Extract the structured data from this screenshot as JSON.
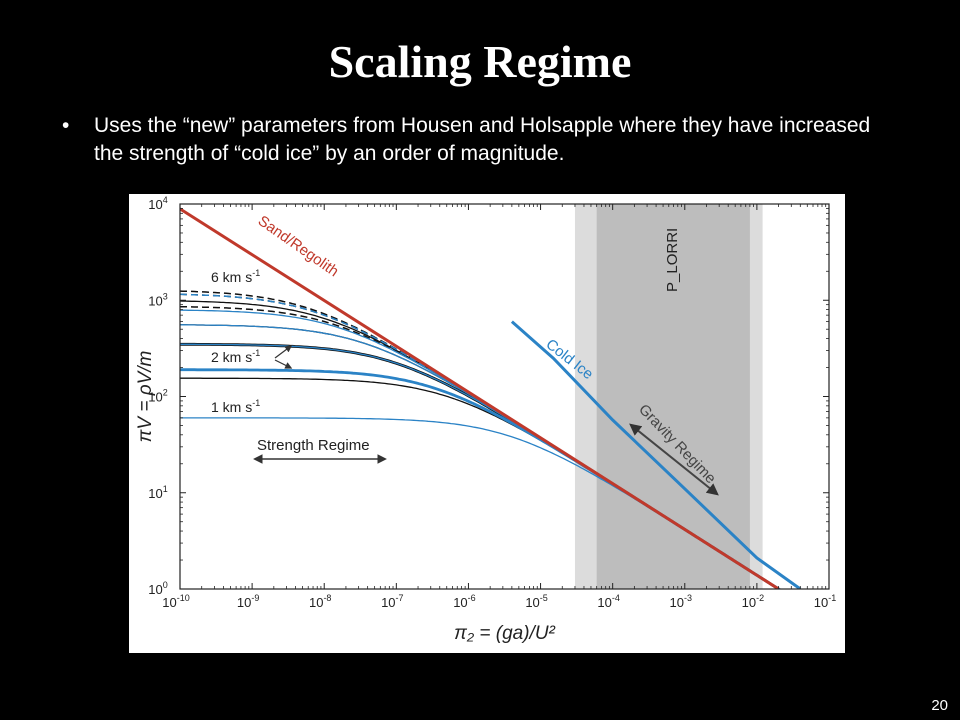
{
  "slide": {
    "title": "Scaling Regime",
    "bullet": "Uses the “new” parameters from Housen and Holsapple where they have increased the strength of “cold ice” by an order of magnitude.",
    "page_number": "20"
  },
  "chart_data": {
    "type": "line",
    "xscale": "log",
    "yscale": "log",
    "xlim": [
      1e-10,
      0.1
    ],
    "ylim": [
      1,
      10000
    ],
    "xlabel": "π₂ = (ga)/U²",
    "ylabel": "πV = ρV/m",
    "x_ticks": [
      {
        "v": 1e-10,
        "exp": "-10"
      },
      {
        "v": 1e-09,
        "exp": "-9"
      },
      {
        "v": 1e-08,
        "exp": "-8"
      },
      {
        "v": 1e-07,
        "exp": "-7"
      },
      {
        "v": 1e-06,
        "exp": "-6"
      },
      {
        "v": 1e-05,
        "exp": "-5"
      },
      {
        "v": 0.0001,
        "exp": "-4"
      },
      {
        "v": 0.001,
        "exp": "-3"
      },
      {
        "v": 0.01,
        "exp": "-2"
      },
      {
        "v": 0.1,
        "exp": "-1"
      }
    ],
    "y_ticks": [
      {
        "v": 1,
        "exp": "0"
      },
      {
        "v": 10,
        "exp": "1"
      },
      {
        "v": 100,
        "exp": "2"
      },
      {
        "v": 1000,
        "exp": "3"
      },
      {
        "v": 10000,
        "exp": "4"
      }
    ],
    "tick_base": "10",
    "bands": [
      {
        "x0": 3e-05,
        "x1": 0.012,
        "color": "#dcdcdc"
      },
      {
        "x0": 6e-05,
        "x1": 0.008,
        "color": "#bdbdbd"
      }
    ],
    "gravity_lines": [
      {
        "name": "Sand/Regolith",
        "color": "#c0392b",
        "points": [
          [
            1e-10,
            8900
          ],
          [
            0.02,
            1
          ]
        ]
      },
      {
        "name": "Cold Ice",
        "color": "#2b83c6",
        "points": [
          [
            4e-06,
            600
          ],
          [
            1.5e-05,
            250
          ],
          [
            0.0001,
            57
          ],
          [
            0.001,
            11
          ],
          [
            0.01,
            2.1
          ],
          [
            0.04,
            1
          ]
        ]
      }
    ],
    "strength_curves": [
      {
        "plateau": 1280,
        "color": "#111111",
        "dash": true,
        "width": 1.5
      },
      {
        "plateau": 1180,
        "color": "#111111",
        "dash": true,
        "width": 1.5
      },
      {
        "plateau": 1000,
        "color": "#111111",
        "dash": false,
        "width": 1.3
      },
      {
        "plateau": 870,
        "color": "#111111",
        "dash": true,
        "width": 1.5
      },
      {
        "plateau": 560,
        "color": "#111111",
        "dash": false,
        "width": 1.3
      },
      {
        "plateau": 350,
        "color": "#111111",
        "dash": false,
        "width": 2.8
      },
      {
        "plateau": 155,
        "color": "#111111",
        "dash": false,
        "width": 1.3
      },
      {
        "plateau": 1180,
        "color": "#2b83c6",
        "dash": true,
        "width": 1.5
      },
      {
        "plateau": 800,
        "color": "#2b83c6",
        "dash": false,
        "width": 1.3
      },
      {
        "plateau": 560,
        "color": "#2b83c6",
        "dash": false,
        "width": 1.3
      },
      {
        "plateau": 350,
        "color": "#2b83c6",
        "dash": false,
        "width": 1.3
      },
      {
        "plateau": 190,
        "color": "#2b83c6",
        "dash": false,
        "width": 2.8
      },
      {
        "plateau": 60,
        "color": "#2b83c6",
        "dash": false,
        "width": 1.3
      }
    ],
    "annotations": {
      "sand_label": "Sand/Regolith",
      "cold_ice_label": "Cold Ice",
      "p_lorri": "P_LORRI",
      "gravity_regime": "Gravity Regime",
      "strength_regime": "Strength Regime",
      "v6": "6 km s",
      "v2": "2 km s",
      "v1": "1 km s",
      "vel_exp": "-1"
    },
    "colors": {
      "sand": "#c0392b",
      "ice": "#2b83c6",
      "dark": "#111111",
      "arrow": "#444444"
    }
  }
}
